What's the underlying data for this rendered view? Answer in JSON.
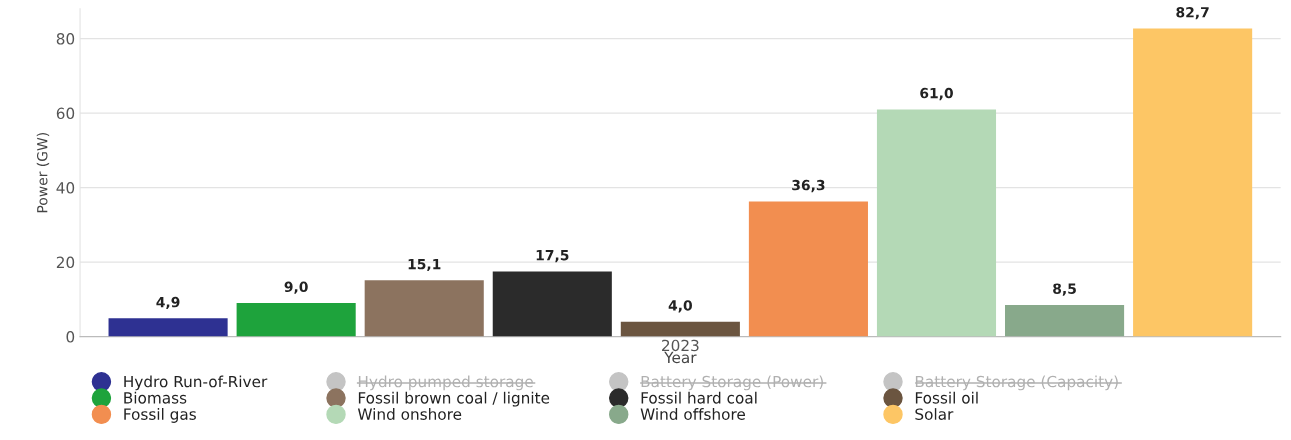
{
  "chart_data": {
    "type": "bar",
    "xlabel": "Year",
    "ylabel": "Power (GW)",
    "categories": [
      "2023"
    ],
    "series": [
      {
        "name": "Hydro Run-of-River",
        "color": "#2e3192",
        "values": [
          4.9
        ],
        "value_labels": [
          "4,9"
        ]
      },
      {
        "name": "Hydro pumped storage",
        "color": "#c4c4c4",
        "values": [
          null
        ]
      },
      {
        "name": "Battery Storage (Power)",
        "color": "#c4c4c4",
        "values": [
          null
        ]
      },
      {
        "name": "Battery Storage (Capacity)",
        "color": "#c4c4c4",
        "values": [
          null
        ]
      },
      {
        "name": "Biomass",
        "color": "#1ea33c",
        "values": [
          9.0
        ],
        "value_labels": [
          "9,0"
        ]
      },
      {
        "name": "Fossil brown coal / lignite",
        "color": "#8c735f",
        "values": [
          15.1
        ],
        "value_labels": [
          "15,1"
        ]
      },
      {
        "name": "Fossil hard coal",
        "color": "#2b2b2b",
        "values": [
          17.5
        ],
        "value_labels": [
          "17,5"
        ]
      },
      {
        "name": "Fossil oil",
        "color": "#6b5540",
        "values": [
          4.0
        ],
        "value_labels": [
          "4,0"
        ]
      },
      {
        "name": "Fossil gas",
        "color": "#f28e50",
        "values": [
          36.3
        ],
        "value_labels": [
          "36,3"
        ]
      },
      {
        "name": "Wind onshore",
        "color": "#b4d9b6",
        "values": [
          61.0
        ],
        "value_labels": [
          "61,0"
        ]
      },
      {
        "name": "Wind offshore",
        "color": "#88a98b",
        "values": [
          8.5
        ],
        "value_labels": [
          "8,5"
        ]
      },
      {
        "name": "Solar",
        "color": "#fdc665",
        "values": [
          82.7
        ],
        "value_labels": [
          "82,7"
        ]
      }
    ],
    "ylim": [
      0,
      88
    ],
    "yticks": [
      0,
      20,
      40,
      60,
      80
    ],
    "grid": "y",
    "legend": "bottom"
  }
}
